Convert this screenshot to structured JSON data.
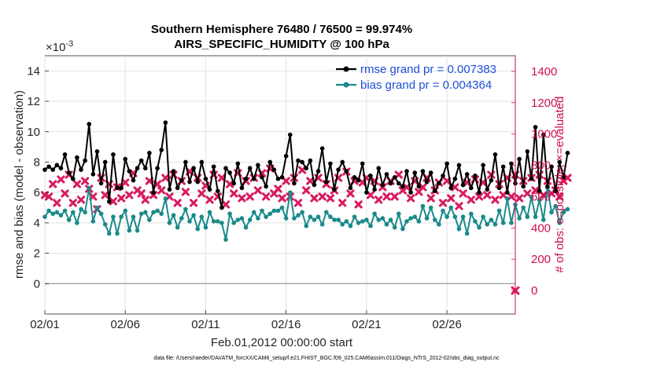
{
  "chart_data": {
    "type": "line",
    "title_line1": "Southern Hemisphere 76480 / 76500 = 99.974%",
    "title_line2": "AIRS_SPECIFIC_HUMIDITY @ 100 hPa",
    "xlabel": "Feb.01,2012 00:00:00 start",
    "ylabel_left": "rmse and bias (model - observation)",
    "ylabel_right": "# of obs: o=possible; ×=evaluated",
    "exponent_label": "×10",
    "exponent_power": "-3",
    "x_tick_labels": [
      "02/01",
      "02/06",
      "02/11",
      "02/16",
      "02/21",
      "02/26"
    ],
    "x_tick_days": [
      0,
      5,
      10,
      15,
      20,
      25
    ],
    "xlim": [
      0,
      29.25
    ],
    "y_left_ticks": [
      "0",
      "2",
      "4",
      "6",
      "8",
      "10",
      "12",
      "14"
    ],
    "y_left_range": [
      -2,
      15
    ],
    "y_right_ticks": [
      "0",
      "200",
      "400",
      "600",
      "800",
      "1000",
      "1200",
      "1400"
    ],
    "y_right_range": [
      -150,
      1500
    ],
    "step_days": 0.25,
    "series": [
      {
        "name": "rmse grand pr = 0.007383",
        "color": "#000000",
        "marker": "circle",
        "values": [
          7.5,
          7.7,
          7.5,
          7.8,
          7.6,
          8.5,
          7.3,
          6.9,
          8.3,
          7.5,
          8.1,
          10.5,
          7.2,
          8.7,
          6.6,
          8.0,
          5.4,
          8.5,
          6.3,
          6.3,
          8.2,
          7.4,
          6.8,
          7.6,
          8.1,
          7.6,
          8.6,
          6.0,
          7.6,
          8.8,
          10.6,
          6.2,
          7.4,
          6.3,
          6.8,
          8.0,
          6.7,
          7.6,
          6.7,
          8.0,
          6.9,
          6.2,
          7.7,
          6.1,
          5.0,
          7.6,
          7.3,
          6.6,
          7.9,
          6.3,
          6.9,
          7.6,
          6.9,
          7.8,
          7.0,
          6.4,
          8.0,
          7.5,
          6.9,
          7.0,
          8.4,
          9.8,
          6.6,
          8.1,
          8.0,
          7.6,
          8.1,
          6.5,
          7.4,
          8.9,
          6.7,
          7.9,
          6.2,
          7.5,
          8.0,
          7.4,
          6.3,
          7.0,
          6.8,
          7.9,
          6.0,
          7.1,
          6.2,
          7.6,
          6.5,
          7.2,
          6.6,
          7.0,
          6.6,
          6.4,
          7.4,
          6.0,
          7.3,
          6.4,
          7.4,
          6.7,
          7.3,
          6.1,
          6.6,
          7.1,
          7.9,
          6.3,
          6.9,
          7.8,
          6.5,
          7.2,
          6.3,
          7.1,
          6.0,
          7.8,
          6.2,
          6.8,
          8.5,
          6.3,
          7.7,
          6.0,
          7.9,
          6.6,
          8.2,
          6.4,
          8.7,
          6.9,
          10.3,
          6.1,
          9.8,
          6.4,
          7.7,
          6.1,
          8.0,
          7.0,
          8.6
        ],
        "legend_label": "rmse grand pr = 0.007383"
      },
      {
        "name": "bias grand pr = 0.004364",
        "color": "#1a8a8a",
        "marker": "circle",
        "values": [
          4.4,
          4.8,
          4.6,
          4.7,
          4.5,
          4.8,
          4.2,
          4.7,
          4.0,
          4.9,
          4.7,
          6.3,
          4.1,
          5.0,
          4.6,
          3.9,
          3.3,
          4.4,
          3.3,
          4.4,
          4.8,
          3.5,
          4.4,
          3.5,
          4.6,
          4.7,
          4.2,
          4.7,
          4.8,
          4.6,
          5.6,
          4.0,
          4.5,
          3.7,
          4.3,
          4.9,
          4.1,
          4.5,
          3.6,
          4.4,
          3.7,
          4.7,
          4.1,
          4.1,
          4.0,
          2.9,
          4.6,
          4.0,
          4.2,
          4.3,
          3.7,
          4.2,
          4.7,
          4.3,
          4.8,
          4.4,
          4.6,
          4.8,
          4.8,
          5.0,
          4.3,
          6.0,
          4.3,
          4.5,
          4.7,
          3.8,
          4.4,
          4.2,
          4.4,
          3.9,
          4.7,
          4.4,
          4.2,
          4.2,
          3.9,
          4.1,
          3.8,
          4.4,
          4.0,
          4.1,
          4.2,
          3.8,
          4.6,
          4.2,
          4.3,
          3.9,
          4.2,
          3.7,
          4.6,
          3.6,
          4.1,
          4.3,
          4.4,
          4.1,
          5.1,
          4.3,
          5.0,
          4.2,
          3.9,
          4.8,
          4.4,
          5.0,
          4.4,
          3.6,
          4.4,
          3.3,
          4.6,
          4.1,
          3.7,
          4.4,
          3.9,
          4.2,
          3.9,
          4.8,
          4.0,
          5.6,
          4.0,
          5.2,
          4.3,
          5.0,
          4.4,
          5.7,
          4.4,
          5.5,
          4.2,
          6.3,
          4.7,
          5.1,
          4.0,
          4.7,
          4.9
        ],
        "legend_label": "bias grand pr = 0.004364"
      }
    ],
    "obs_series": {
      "name": "# of obs evaluated",
      "color": "#d81b60",
      "marker": "x",
      "values": [
        610,
        600,
        680,
        560,
        710,
        620,
        740,
        560,
        680,
        580,
        700,
        650,
        600,
        520,
        720,
        610,
        680,
        570,
        660,
        590,
        690,
        610,
        750,
        640,
        620,
        580,
        700,
        610,
        680,
        640,
        720,
        600,
        740,
        560,
        700,
        630,
        760,
        560,
        720,
        620,
        670,
        580,
        740,
        600,
        720,
        550,
        680,
        620,
        750,
        590,
        700,
        600,
        720,
        640,
        750,
        600,
        780,
        620,
        650,
        590,
        700,
        600,
        720,
        560,
        770,
        640,
        700,
        590,
        720,
        600,
        680,
        590,
        640,
        720,
        560,
        760,
        620,
        700,
        550,
        690,
        720,
        610,
        700,
        580,
        660,
        600,
        700,
        600,
        740,
        640,
        660,
        590,
        700,
        630,
        660,
        720,
        590,
        640,
        690,
        560,
        700,
        590,
        660,
        540,
        620,
        690,
        580,
        710,
        600,
        690,
        610,
        740,
        580,
        680,
        610,
        720,
        600,
        740,
        590,
        700,
        620,
        720,
        640,
        740,
        610,
        700,
        620,
        640,
        600,
        700,
        720
      ],
      "final_marker": 0
    },
    "legend_placement": "top-right",
    "footnote": "data file: /Users/raeder/DAI/ATM_forcXX/CAM6_setup/f.e21.FHIST_BGC.f09_025.CAM6assim.011/Diags_NTrS_2012-02/obs_diag_output.nc"
  }
}
